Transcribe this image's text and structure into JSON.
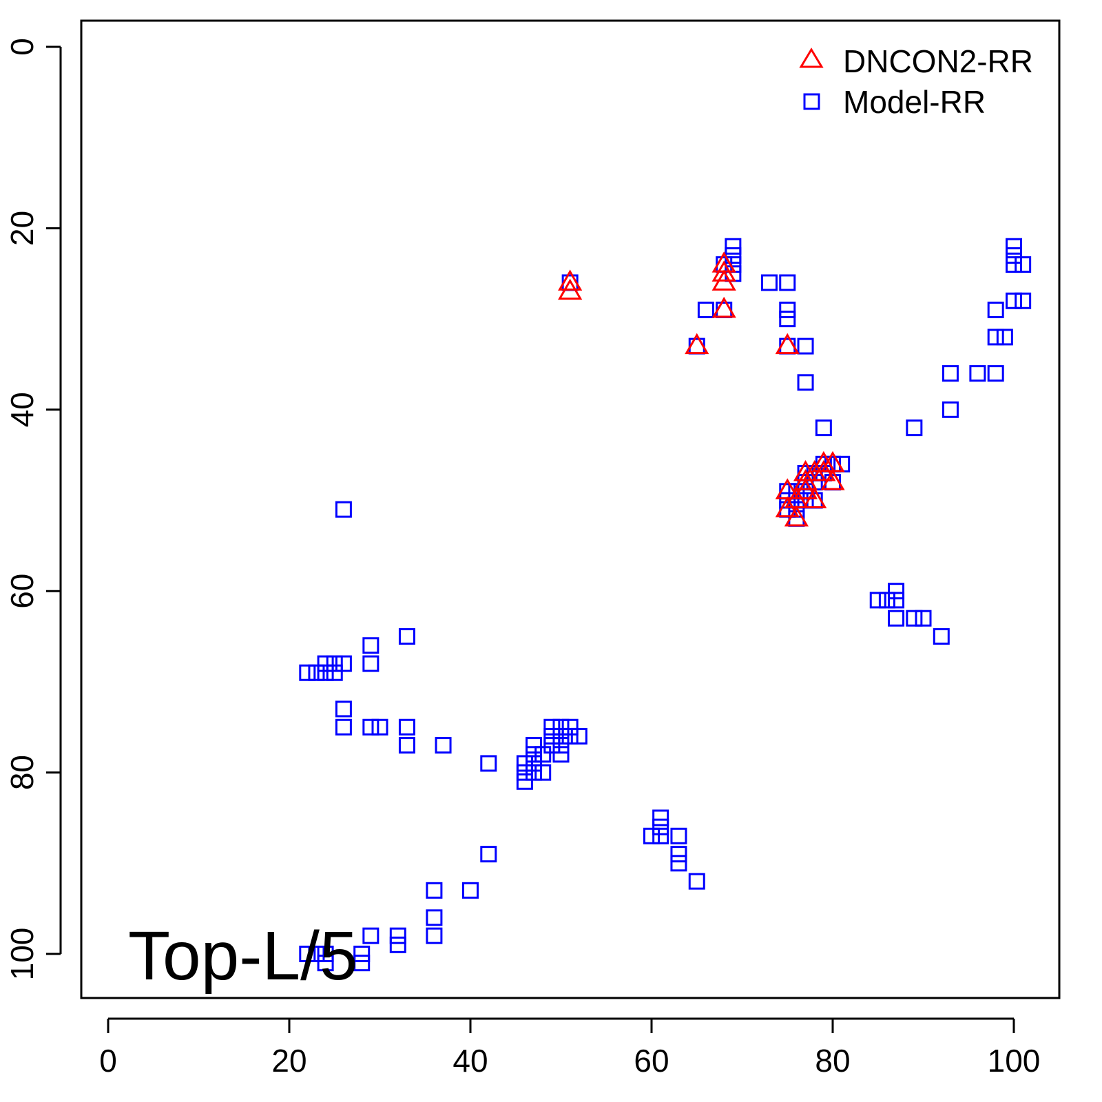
{
  "chart_data": {
    "type": "scatter",
    "title": "",
    "annotation": "Top-L/5",
    "xlabel": "",
    "ylabel": "",
    "xlim": [
      -1.5,
      106.5
    ],
    "ylim": [
      105,
      -3
    ],
    "y_inverted": true,
    "xticks": [
      0,
      20,
      40,
      60,
      80,
      100
    ],
    "yticks": [
      0,
      20,
      40,
      60,
      80,
      100
    ],
    "xtick_labels": [
      "0",
      "20",
      "40",
      "60",
      "80",
      "100"
    ],
    "ytick_labels": [
      "0",
      "20",
      "40",
      "60",
      "80",
      "100"
    ],
    "grid": false,
    "legend_position": "top-right",
    "series": [
      {
        "name": "DNCON2-RR",
        "marker": "triangle",
        "color": "#ff0000",
        "points": [
          [
            51,
            26
          ],
          [
            51,
            27
          ],
          [
            68,
            24
          ],
          [
            68,
            25
          ],
          [
            68,
            26
          ],
          [
            68,
            29
          ],
          [
            65,
            33
          ],
          [
            75,
            33
          ],
          [
            79,
            46
          ],
          [
            80,
            46
          ],
          [
            77,
            47
          ],
          [
            78,
            47
          ],
          [
            79,
            47
          ],
          [
            80,
            48
          ],
          [
            77,
            48
          ],
          [
            75,
            49
          ],
          [
            77,
            49
          ],
          [
            76,
            50
          ],
          [
            78,
            50
          ],
          [
            75,
            51
          ],
          [
            76,
            52
          ]
        ]
      },
      {
        "name": "Model-RR",
        "marker": "square",
        "color": "#0000ff",
        "points": [
          [
            51,
            26
          ],
          [
            69,
            22
          ],
          [
            69,
            23
          ],
          [
            69,
            24
          ],
          [
            69,
            25
          ],
          [
            68,
            24
          ],
          [
            68,
            29
          ],
          [
            66,
            29
          ],
          [
            65,
            33
          ],
          [
            73,
            26
          ],
          [
            75,
            26
          ],
          [
            75,
            29
          ],
          [
            75,
            30
          ],
          [
            75,
            33
          ],
          [
            77,
            33
          ],
          [
            77,
            37
          ],
          [
            79,
            42
          ],
          [
            79,
            46
          ],
          [
            80,
            46
          ],
          [
            81,
            46
          ],
          [
            77,
            47
          ],
          [
            78,
            47
          ],
          [
            79,
            47
          ],
          [
            77,
            48
          ],
          [
            78,
            48
          ],
          [
            80,
            48
          ],
          [
            75,
            49
          ],
          [
            76,
            49
          ],
          [
            77,
            49
          ],
          [
            75,
            50
          ],
          [
            76,
            50
          ],
          [
            77,
            50
          ],
          [
            78,
            50
          ],
          [
            75,
            51
          ],
          [
            76,
            51
          ],
          [
            76,
            52
          ],
          [
            100,
            22
          ],
          [
            100,
            23
          ],
          [
            100,
            24
          ],
          [
            101,
            24
          ],
          [
            100,
            28
          ],
          [
            101,
            28
          ],
          [
            98,
            29
          ],
          [
            98,
            32
          ],
          [
            99,
            32
          ],
          [
            96,
            36
          ],
          [
            98,
            36
          ],
          [
            93,
            36
          ],
          [
            93,
            40
          ],
          [
            89,
            42
          ],
          [
            26,
            51
          ],
          [
            87,
            60
          ],
          [
            85,
            61
          ],
          [
            86,
            61
          ],
          [
            87,
            61
          ],
          [
            87,
            63
          ],
          [
            89,
            63
          ],
          [
            90,
            63
          ],
          [
            92,
            65
          ],
          [
            33,
            65
          ],
          [
            29,
            66
          ],
          [
            29,
            68
          ],
          [
            22,
            69
          ],
          [
            23,
            69
          ],
          [
            24,
            68
          ],
          [
            24,
            69
          ],
          [
            25,
            68
          ],
          [
            25,
            69
          ],
          [
            26,
            68
          ],
          [
            26,
            73
          ],
          [
            26,
            75
          ],
          [
            29,
            75
          ],
          [
            30,
            75
          ],
          [
            33,
            75
          ],
          [
            33,
            77
          ],
          [
            37,
            77
          ],
          [
            42,
            79
          ],
          [
            46,
            79
          ],
          [
            46,
            80
          ],
          [
            46,
            81
          ],
          [
            47,
            77
          ],
          [
            47,
            78
          ],
          [
            47,
            79
          ],
          [
            47,
            80
          ],
          [
            48,
            78
          ],
          [
            48,
            80
          ],
          [
            49,
            75
          ],
          [
            49,
            76
          ],
          [
            49,
            77
          ],
          [
            50,
            75
          ],
          [
            50,
            76
          ],
          [
            50,
            77
          ],
          [
            50,
            78
          ],
          [
            51,
            75
          ],
          [
            51,
            76
          ],
          [
            52,
            76
          ],
          [
            61,
            85
          ],
          [
            61,
            86
          ],
          [
            60,
            87
          ],
          [
            61,
            87
          ],
          [
            63,
            87
          ],
          [
            63,
            89
          ],
          [
            63,
            90
          ],
          [
            65,
            92
          ],
          [
            42,
            89
          ],
          [
            40,
            93
          ],
          [
            36,
            93
          ],
          [
            36,
            96
          ],
          [
            36,
            98
          ],
          [
            32,
            98
          ],
          [
            32,
            99
          ],
          [
            29,
            98
          ],
          [
            28,
            100
          ],
          [
            28,
            101
          ],
          [
            24,
            100
          ],
          [
            22,
            100
          ],
          [
            23,
            100
          ],
          [
            24,
            101
          ]
        ]
      }
    ]
  }
}
